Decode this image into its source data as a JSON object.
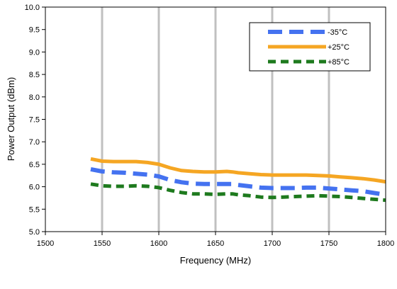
{
  "chart_data": {
    "type": "line",
    "xlabel": "Frequency (MHz)",
    "ylabel": "Power Output (dBm)",
    "xlim": [
      1500,
      1800
    ],
    "ylim": [
      5.0,
      10.0
    ],
    "xticks": [
      "1500",
      "1550",
      "1600",
      "1650",
      "1700",
      "1750",
      "1800"
    ],
    "yticks": [
      "5.0",
      "5.5",
      "6.0",
      "6.5",
      "7.0",
      "7.5",
      "8.0",
      "8.5",
      "9.0",
      "9.5",
      "10.0"
    ],
    "grid": "vertical",
    "legend_position": "top-right",
    "series": [
      {
        "name": "-35°C",
        "color": "#4472F0",
        "style": "dashed",
        "x": [
          1540,
          1550,
          1560,
          1570,
          1580,
          1590,
          1600,
          1610,
          1620,
          1630,
          1640,
          1650,
          1660,
          1665,
          1670,
          1680,
          1690,
          1700,
          1710,
          1720,
          1730,
          1740,
          1750,
          1760,
          1770,
          1780,
          1790,
          1800
        ],
        "y": [
          6.39,
          6.34,
          6.32,
          6.31,
          6.29,
          6.27,
          6.23,
          6.15,
          6.1,
          6.07,
          6.06,
          6.06,
          6.06,
          6.06,
          6.04,
          6.01,
          5.98,
          5.97,
          5.97,
          5.97,
          5.98,
          5.98,
          5.96,
          5.94,
          5.92,
          5.9,
          5.86,
          5.82
        ]
      },
      {
        "name": "+25°C",
        "color": "#F5A623",
        "style": "solid",
        "x": [
          1540,
          1550,
          1560,
          1570,
          1580,
          1590,
          1600,
          1610,
          1620,
          1630,
          1640,
          1650,
          1660,
          1665,
          1670,
          1680,
          1690,
          1700,
          1710,
          1720,
          1730,
          1740,
          1750,
          1760,
          1770,
          1780,
          1790,
          1800
        ],
        "y": [
          6.62,
          6.57,
          6.56,
          6.56,
          6.56,
          6.54,
          6.5,
          6.42,
          6.36,
          6.34,
          6.33,
          6.33,
          6.34,
          6.33,
          6.31,
          6.29,
          6.27,
          6.26,
          6.26,
          6.26,
          6.26,
          6.25,
          6.24,
          6.22,
          6.2,
          6.18,
          6.15,
          6.11
        ]
      },
      {
        "name": "+85°C",
        "color": "#1E7A1E",
        "style": "dashed",
        "x": [
          1540,
          1550,
          1560,
          1570,
          1580,
          1590,
          1600,
          1610,
          1620,
          1630,
          1640,
          1650,
          1660,
          1665,
          1670,
          1680,
          1690,
          1700,
          1710,
          1720,
          1730,
          1740,
          1750,
          1760,
          1770,
          1780,
          1790,
          1800
        ],
        "y": [
          6.06,
          6.02,
          6.01,
          6.01,
          6.02,
          6.01,
          5.98,
          5.92,
          5.87,
          5.84,
          5.84,
          5.83,
          5.84,
          5.84,
          5.82,
          5.8,
          5.77,
          5.76,
          5.77,
          5.78,
          5.79,
          5.8,
          5.79,
          5.78,
          5.76,
          5.74,
          5.72,
          5.7
        ]
      }
    ]
  }
}
